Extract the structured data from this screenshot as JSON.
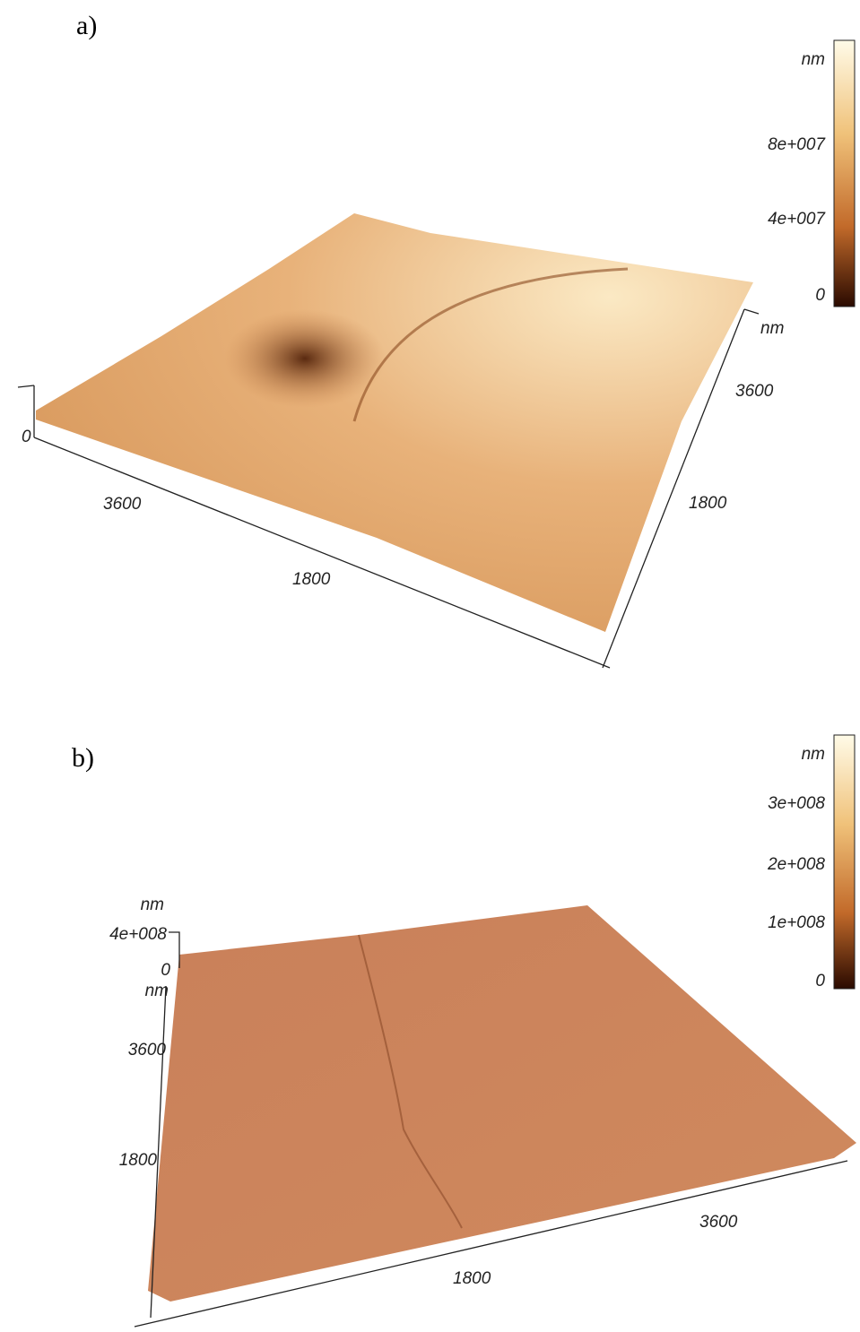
{
  "panels": [
    {
      "label": "a)",
      "colorbar": {
        "unit": "nm",
        "ticks": [
          "8e+007",
          "4e+007",
          "0"
        ]
      },
      "z_axis": {
        "ticks": [
          "0"
        ]
      },
      "x_axis": {
        "ticks": [
          "3600",
          "1800"
        ]
      },
      "y_axis": {
        "unit": "nm",
        "ticks": [
          "3600",
          "1800"
        ]
      }
    },
    {
      "label": "b)",
      "colorbar": {
        "unit": "nm",
        "ticks": [
          "3e+008",
          "2e+008",
          "1e+008",
          "0"
        ]
      },
      "z_axis": {
        "unit": "nm",
        "ticks": [
          "4e+008",
          "0"
        ]
      },
      "y_axis": {
        "unit": "nm",
        "ticks": [
          "3600",
          "1800"
        ]
      },
      "x_axis": {
        "ticks": [
          "1800",
          "3600"
        ]
      }
    }
  ]
}
